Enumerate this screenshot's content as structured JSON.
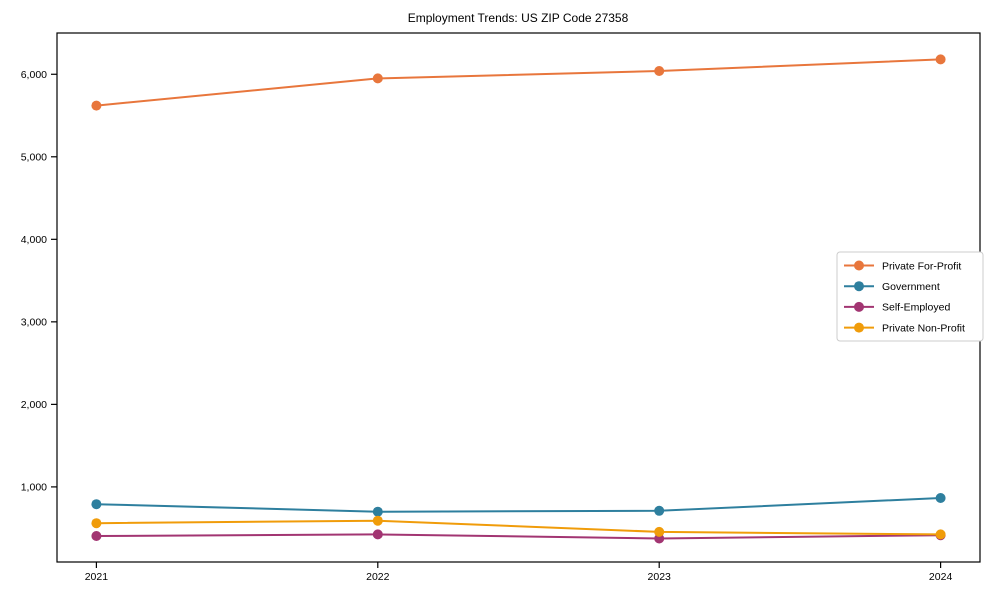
{
  "chart_data": {
    "type": "line",
    "title": "Employment Trends: US ZIP Code 27358",
    "xlabel": "",
    "ylabel": "",
    "x": [
      2021,
      2022,
      2023,
      2024
    ],
    "xtick_labels": [
      "2021",
      "2022",
      "2023",
      "2024"
    ],
    "yticks": [
      1000,
      2000,
      3000,
      4000,
      5000,
      6000
    ],
    "ytick_labels": [
      "1,000",
      "2,000",
      "3,000",
      "4,000",
      "5,000",
      "6,000"
    ],
    "xlim": [
      2020.86,
      2024.14
    ],
    "ylim": [
      90,
      6500
    ],
    "grid": false,
    "marker": "circle",
    "legend_position": "right-middle",
    "background_color": "#ffffff",
    "axis_color": "#000000",
    "legend_border_color": "#cccccc",
    "series": [
      {
        "name": "Private For-Profit",
        "color": "#e8763c",
        "values": [
          5620,
          5950,
          6040,
          6180
        ]
      },
      {
        "name": "Government",
        "color": "#2e7f9e",
        "values": [
          790,
          700,
          710,
          865
        ]
      },
      {
        "name": "Self-Employed",
        "color": "#a23572",
        "values": [
          405,
          425,
          375,
          415
        ]
      },
      {
        "name": "Private Non-Profit",
        "color": "#f09c0a",
        "values": [
          560,
          590,
          455,
          425
        ]
      }
    ]
  }
}
